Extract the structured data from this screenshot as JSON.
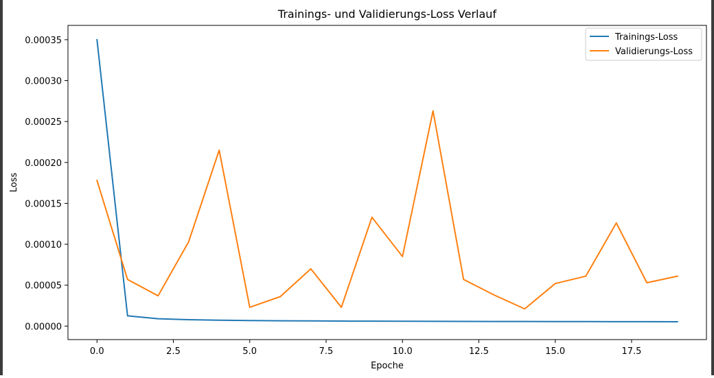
{
  "chart_data": {
    "type": "line",
    "title": "Trainings- und Validierungs-Loss Verlauf",
    "xlabel": "Epoche",
    "ylabel": "Loss",
    "xlim": [
      -0.95,
      19.95
    ],
    "ylim": [
      -1.65e-05,
      0.0003675
    ],
    "xticks": [
      0.0,
      2.5,
      5.0,
      7.5,
      10.0,
      12.5,
      15.0,
      17.5
    ],
    "xtick_labels": [
      "0.0",
      "2.5",
      "5.0",
      "7.5",
      "10.0",
      "12.5",
      "15.0",
      "17.5"
    ],
    "yticks": [
      0.0,
      5e-05,
      0.0001,
      0.00015,
      0.0002,
      0.00025,
      0.0003,
      0.00035
    ],
    "ytick_labels": [
      "0.00000",
      "0.00005",
      "0.00010",
      "0.00015",
      "0.00020",
      "0.00025",
      "0.00030",
      "0.00035"
    ],
    "grid": false,
    "legend_position": "top-right",
    "x": [
      0,
      1,
      2,
      3,
      4,
      5,
      6,
      7,
      8,
      9,
      10,
      11,
      12,
      13,
      14,
      15,
      16,
      17,
      18,
      19
    ],
    "series": [
      {
        "name": "Trainings-Loss",
        "color": "#1f77b4",
        "values": [
          0.00035,
          1.25e-05,
          9e-06,
          7.8e-06,
          7.2e-06,
          6.8e-06,
          6.5e-06,
          6.3e-06,
          6.1e-06,
          6e-06,
          5.9e-06,
          5.8e-06,
          5.7e-06,
          5.6e-06,
          5.6e-06,
          5.5e-06,
          5.5e-06,
          5.4e-06,
          5.4e-06,
          5.3e-06
        ]
      },
      {
        "name": "Validierungs-Loss",
        "color": "#ff7f0e",
        "values": [
          0.000178,
          5.7e-05,
          3.7e-05,
          0.000103,
          0.000215,
          2.3e-05,
          3.6e-05,
          7e-05,
          2.3e-05,
          0.000133,
          8.5e-05,
          0.000263,
          5.7e-05,
          3.8e-05,
          2.1e-05,
          5.2e-05,
          6.1e-05,
          0.000126,
          5.3e-05,
          6.1e-05
        ]
      }
    ]
  }
}
